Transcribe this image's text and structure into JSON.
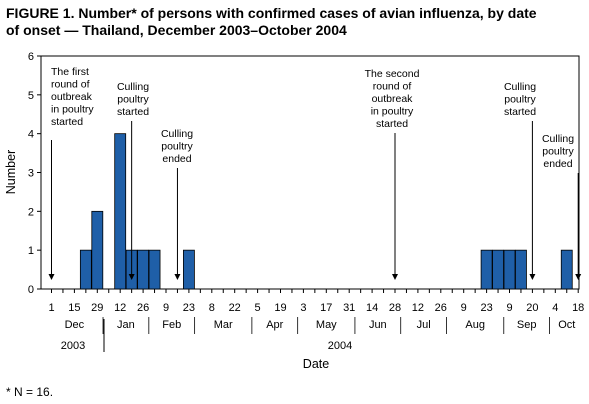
{
  "title_line1": "FIGURE 1. Number* of persons with confirmed cases of avian influenza, by date",
  "title_line2": "of onset — Thailand, December 2003–October 2004",
  "footnote": "* N = 16.",
  "chart_data": {
    "type": "bar",
    "ylabel": "Number",
    "xlabel": "Date",
    "ylim": [
      0,
      6
    ],
    "yticks": [
      "0",
      "1",
      "2",
      "3",
      "4",
      "5",
      "6"
    ],
    "x_tick_labels": [
      "1",
      "15",
      "29",
      "12",
      "26",
      "9",
      "23",
      "8",
      "22",
      "5",
      "19",
      "3",
      "17",
      "31",
      "14",
      "28",
      "12",
      "26",
      "9",
      "23",
      "9",
      "20",
      "4",
      "18"
    ],
    "months": [
      "Dec",
      "Jan",
      "Feb",
      "Mar",
      "Apr",
      "May",
      "Jun",
      "Jul",
      "Aug",
      "Sep",
      "Oct"
    ],
    "years": [
      "2003",
      "2004"
    ],
    "weeks": [
      "Dec 1",
      "Dec 8",
      "Dec 15",
      "Dec 22",
      "Dec 29",
      "Jan 5",
      "Jan 12",
      "Jan 19",
      "Jan 26",
      "Feb 2",
      "Feb 9",
      "Feb 16",
      "Feb 23",
      "Mar 1",
      "Mar 8",
      "Mar 15",
      "Mar 22",
      "Mar 29",
      "Apr 5",
      "Apr 12",
      "Apr 19",
      "Apr 26",
      "May 3",
      "May 10",
      "May 17",
      "May 24",
      "May 31",
      "Jun 7",
      "Jun 14",
      "Jun 21",
      "Jun 28",
      "Jul 5",
      "Jul 12",
      "Jul 19",
      "Jul 26",
      "Aug 2",
      "Aug 9",
      "Aug 16",
      "Aug 23",
      "Aug 30",
      "Sep 6",
      "Sep 13",
      "Sep 20",
      "Sep 27",
      "Oct 4",
      "Oct 11",
      "Oct 18"
    ],
    "values": [
      0,
      0,
      0,
      1,
      2,
      0,
      4,
      1,
      1,
      1,
      0,
      0,
      1,
      0,
      0,
      0,
      0,
      0,
      0,
      0,
      0,
      0,
      0,
      0,
      0,
      0,
      0,
      0,
      0,
      0,
      0,
      0,
      0,
      0,
      0,
      0,
      0,
      0,
      1,
      1,
      1,
      1,
      0,
      0,
      0,
      1,
      0
    ],
    "bar_color": "#1f5fa8",
    "annotations": [
      {
        "week": 0,
        "lines": [
          "The first",
          "round of",
          "outbreak",
          "in poultry",
          "started"
        ]
      },
      {
        "week": 7,
        "lines": [
          "Culling",
          "poultry",
          "started"
        ]
      },
      {
        "week": 11,
        "lines": [
          "Culling",
          "poultry",
          "ended"
        ]
      },
      {
        "week": 30,
        "lines": [
          "The second",
          "round of",
          "outbreak",
          "in poultry",
          "started"
        ]
      },
      {
        "week": 42,
        "lines": [
          "Culling",
          "poultry",
          "started"
        ]
      },
      {
        "week": 46,
        "lines": [
          "Culling",
          "poultry",
          "ended"
        ]
      }
    ]
  }
}
